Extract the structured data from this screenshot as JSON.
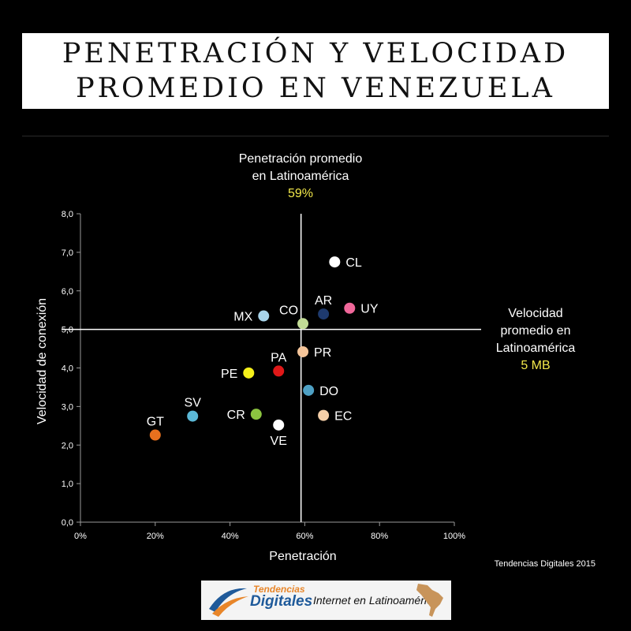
{
  "title": {
    "line1": "PENETRACIÓN Y VELOCIDAD",
    "line2": "PROMEDIO EN VENEZUELA"
  },
  "annotations": {
    "penetration_avg": {
      "line1": "Penetración promedio",
      "line2": "en Latinoamérica",
      "value": "59%"
    },
    "speed_avg": {
      "line1": "Velocidad",
      "line2": "promedio en",
      "line3": "Latinoamérica",
      "value": "5 MB"
    }
  },
  "source": "Tendencias Digitales 2015",
  "banner": {
    "brand_top": "Tendencias",
    "brand_bottom": "Digitales",
    "tagline": "Internet en Latinoamérica"
  },
  "colors": {
    "accent_yellow": "#f2e84a"
  },
  "chart_data": {
    "type": "scatter",
    "xlabel": "Penetración",
    "ylabel": "Velocidad de conexión",
    "xlim": [
      0,
      100
    ],
    "ylim": [
      0,
      8
    ],
    "x_ticks": [
      "0%",
      "20%",
      "40%",
      "60%",
      "80%",
      "100%"
    ],
    "x_tick_values": [
      0,
      20,
      40,
      60,
      80,
      100
    ],
    "y_ticks": [
      "0,0",
      "1,0",
      "2,0",
      "3,0",
      "4,0",
      "5,0",
      "6,0",
      "7,0",
      "8,0"
    ],
    "y_tick_values": [
      0,
      1,
      2,
      3,
      4,
      5,
      6,
      7,
      8
    ],
    "reference_lines": {
      "x": 59,
      "y": 5.0
    },
    "grid": false,
    "points": [
      {
        "label": "CL",
        "x": 68,
        "y": 6.75,
        "color": "#ffffff",
        "label_pos": "right"
      },
      {
        "label": "AR",
        "x": 65,
        "y": 5.4,
        "color": "#1e3a6e",
        "label_pos": "above"
      },
      {
        "label": "UY",
        "x": 72,
        "y": 5.55,
        "color": "#f0679a",
        "label_pos": "right"
      },
      {
        "label": "MX",
        "x": 49,
        "y": 5.35,
        "color": "#a8d4ea",
        "label_pos": "left"
      },
      {
        "label": "CO",
        "x": 59.5,
        "y": 5.15,
        "color": "#c2dc96",
        "label_pos": "above-left"
      },
      {
        "label": "PR",
        "x": 59.5,
        "y": 4.42,
        "color": "#f5c59a",
        "label_pos": "right"
      },
      {
        "label": "PA",
        "x": 53,
        "y": 3.92,
        "color": "#e01818",
        "label_pos": "above"
      },
      {
        "label": "PE",
        "x": 45,
        "y": 3.87,
        "color": "#f5f01a",
        "label_pos": "left"
      },
      {
        "label": "DO",
        "x": 61,
        "y": 3.42,
        "color": "#4ea0c4",
        "label_pos": "right"
      },
      {
        "label": "SV",
        "x": 30,
        "y": 2.75,
        "color": "#5bb8d6",
        "label_pos": "above"
      },
      {
        "label": "CR",
        "x": 47,
        "y": 2.8,
        "color": "#8cc540",
        "label_pos": "left"
      },
      {
        "label": "EC",
        "x": 65,
        "y": 2.77,
        "color": "#f5cfa8",
        "label_pos": "right"
      },
      {
        "label": "VE",
        "x": 53,
        "y": 2.52,
        "color": "#ffffff",
        "label_pos": "below"
      },
      {
        "label": "GT",
        "x": 20,
        "y": 2.26,
        "color": "#e8701e",
        "label_pos": "above"
      }
    ]
  }
}
